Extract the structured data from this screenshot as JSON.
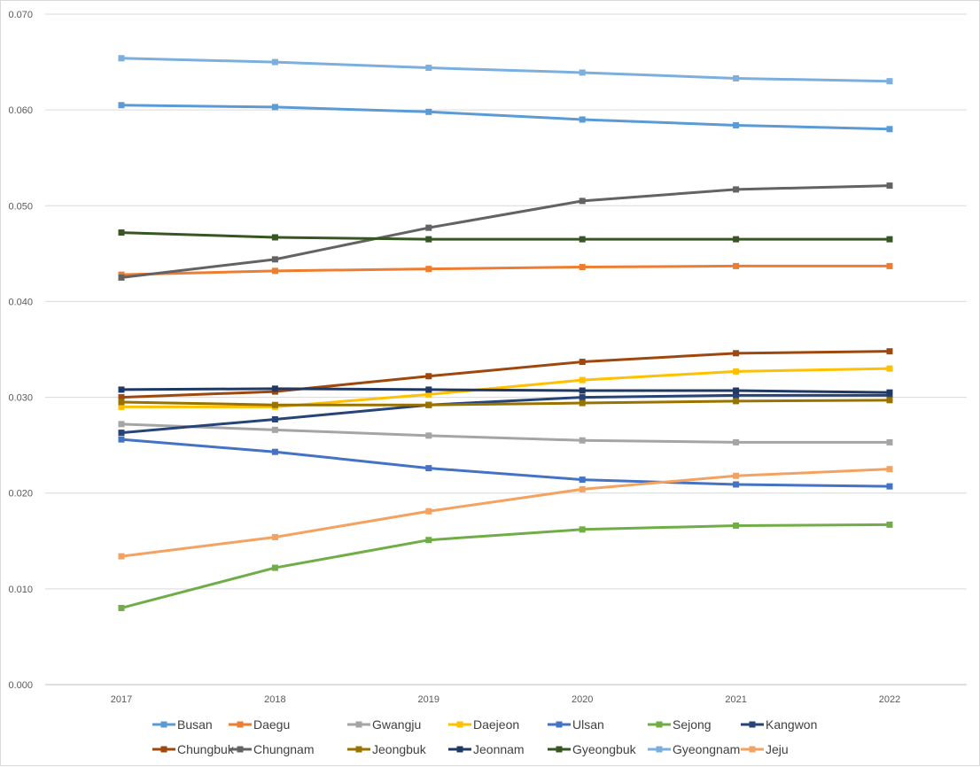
{
  "chart_data": {
    "type": "line",
    "title": "",
    "xlabel": "",
    "ylabel": "",
    "x": [
      "2017",
      "2018",
      "2019",
      "2020",
      "2021",
      "2022"
    ],
    "ylim": [
      0.0,
      0.07
    ],
    "yticks": [
      "0.000",
      "0.010",
      "0.020",
      "0.030",
      "0.040",
      "0.050",
      "0.060",
      "0.070"
    ],
    "grid": true,
    "legend_position": "bottom",
    "series": [
      {
        "name": "Busan",
        "color": "#5b9bd5",
        "values": [
          0.0605,
          0.0603,
          0.0598,
          0.059,
          0.0584,
          0.058
        ]
      },
      {
        "name": "Daegu",
        "color": "#ed7d31",
        "values": [
          0.0428,
          0.0432,
          0.0434,
          0.0436,
          0.0437,
          0.0437
        ]
      },
      {
        "name": "Gwangju",
        "color": "#a5a5a5",
        "values": [
          0.0272,
          0.0266,
          0.026,
          0.0255,
          0.0253,
          0.0253
        ]
      },
      {
        "name": "Daejeon",
        "color": "#ffc000",
        "values": [
          0.029,
          0.029,
          0.0303,
          0.0318,
          0.0327,
          0.033
        ]
      },
      {
        "name": "Ulsan",
        "color": "#4472c4",
        "values": [
          0.0256,
          0.0243,
          0.0226,
          0.0214,
          0.0209,
          0.0207
        ]
      },
      {
        "name": "Sejong",
        "color": "#70ad47",
        "values": [
          0.008,
          0.0122,
          0.0151,
          0.0162,
          0.0166,
          0.0167
        ]
      },
      {
        "name": "Kangwon",
        "color": "#264478",
        "values": [
          0.0263,
          0.0277,
          0.0292,
          0.03,
          0.0302,
          0.0302
        ]
      },
      {
        "name": "Chungbuk",
        "color": "#9e480e",
        "values": [
          0.03,
          0.0306,
          0.0322,
          0.0337,
          0.0346,
          0.0348
        ]
      },
      {
        "name": "Chungnam",
        "color": "#636363",
        "values": [
          0.0425,
          0.0444,
          0.0477,
          0.0505,
          0.0517,
          0.0521
        ]
      },
      {
        "name": "Jeongbuk",
        "color": "#997300",
        "values": [
          0.0295,
          0.0292,
          0.0292,
          0.0294,
          0.0296,
          0.0297
        ]
      },
      {
        "name": "Jeonnam",
        "color": "#203864",
        "values": [
          0.0308,
          0.0309,
          0.0308,
          0.0307,
          0.0307,
          0.0305
        ]
      },
      {
        "name": "Gyeongbuk",
        "color": "#375623",
        "values": [
          0.0472,
          0.0467,
          0.0465,
          0.0465,
          0.0465,
          0.0465
        ]
      },
      {
        "name": "Gyeongnam",
        "color": "#7cafdd",
        "values": [
          0.0654,
          0.065,
          0.0644,
          0.0639,
          0.0633,
          0.063
        ]
      },
      {
        "name": "Jeju",
        "color": "#f4a261",
        "values": [
          0.0134,
          0.0154,
          0.0181,
          0.0204,
          0.0218,
          0.0225
        ]
      }
    ]
  }
}
